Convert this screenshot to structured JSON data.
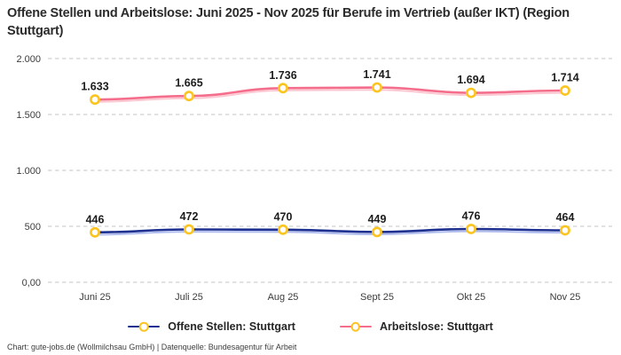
{
  "title": "Offene Stellen und Arbeitslose: Juni 2025 - Nov 2025 für Berufe im Vertrieb (außer IKT) (Region Stuttgart)",
  "footer": "Chart: gute-jobs.de (Wollmilchsau GmbH) | Datenquelle: Bundesagentur für Arbeit",
  "legend": {
    "items": [
      {
        "label": "Offene Stellen: Stuttgart"
      },
      {
        "label": "Arbeitslose: Stuttgart"
      }
    ]
  },
  "colors": {
    "offene_stellen_line": "#1e3191",
    "offene_stellen_shadow": "#a7b6ec",
    "arbeitslose_line": "#f46e8c",
    "arbeitslose_shadow": "#fbc2cd",
    "marker_ring": "#fcc41f",
    "marker_fill": "#ffffff",
    "gridline": "#c6c6c6",
    "axis_text": "#3c3c3c",
    "data_label_text": "#1c1c1c"
  },
  "chart_data": {
    "type": "line",
    "categories": [
      "Juni 25",
      "Juli 25",
      "Aug 25",
      "Sept 25",
      "Okt 25",
      "Nov 25"
    ],
    "series": [
      {
        "name": "Offene Stellen: Stuttgart",
        "values": [
          446,
          472,
          470,
          449,
          476,
          464
        ],
        "labels": [
          "446",
          "472",
          "470",
          "449",
          "476",
          "464"
        ],
        "color": "#1e3191",
        "shadow_color": "#a7b6ec"
      },
      {
        "name": "Arbeitslose: Stuttgart",
        "values": [
          1633,
          1665,
          1736,
          1741,
          1694,
          1714
        ],
        "labels": [
          "1.633",
          "1.665",
          "1.736",
          "1.741",
          "1.694",
          "1.714"
        ],
        "color": "#f46e8c",
        "shadow_color": "#fbc2cd"
      }
    ],
    "y_ticks": [
      {
        "value": 0,
        "label": "0,00"
      },
      {
        "value": 500,
        "label": "500"
      },
      {
        "value": 1000,
        "label": "1.000"
      },
      {
        "value": 1500,
        "label": "1.500"
      },
      {
        "value": 2000,
        "label": "2.000"
      }
    ],
    "ylim": [
      0,
      2000
    ],
    "xlabel": "",
    "ylabel": "",
    "grid": "horizontal-dashed",
    "legend_position": "bottom",
    "marker": {
      "fill": "#ffffff",
      "stroke": "#fcc41f"
    }
  }
}
